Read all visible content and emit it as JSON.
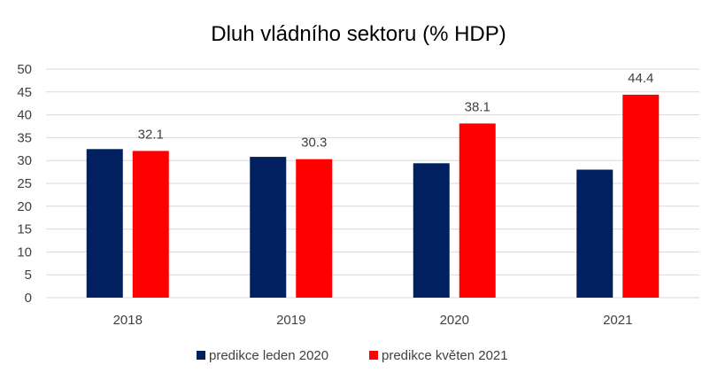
{
  "chart_data": {
    "type": "bar",
    "title": "Dluh vládního sektoru (% HDP)",
    "categories": [
      "2018",
      "2019",
      "2020",
      "2021"
    ],
    "series": [
      {
        "name": "predikce leden 2020",
        "color": "#002060",
        "values": [
          32.5,
          30.8,
          29.4,
          28.0
        ]
      },
      {
        "name": "predikce květen 2021",
        "color": "#FF0000",
        "values": [
          32.1,
          30.3,
          38.1,
          44.4
        ],
        "data_labels": [
          "32.1",
          "30.3",
          "38.1",
          "44.4"
        ]
      }
    ],
    "ylim": [
      0,
      50
    ],
    "yticks": [
      0,
      5,
      10,
      15,
      20,
      25,
      30,
      35,
      40,
      45,
      50
    ],
    "grid": true,
    "legend_position": "bottom"
  }
}
